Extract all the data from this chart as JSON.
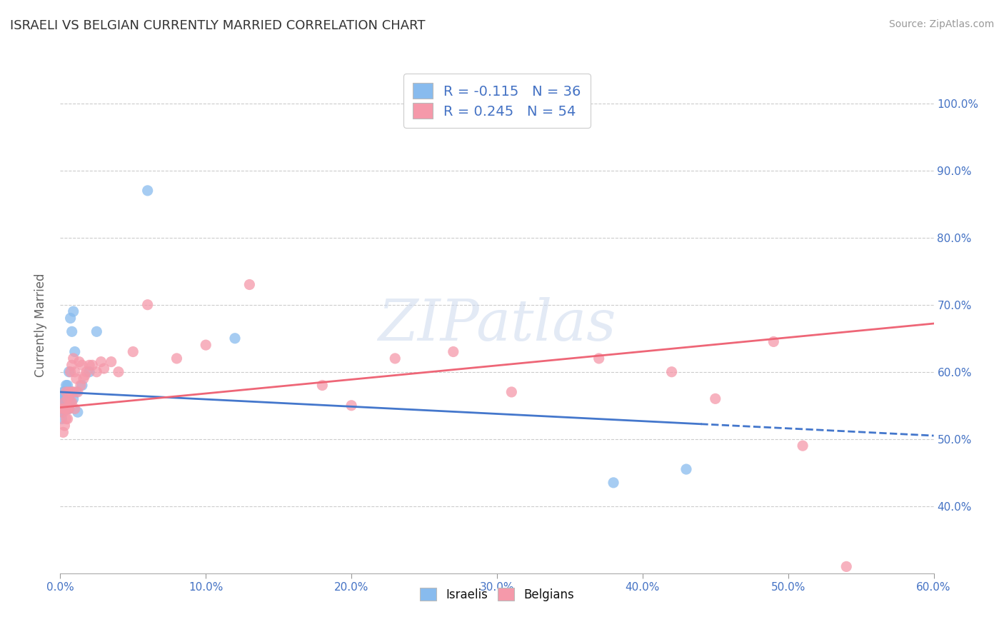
{
  "title": "ISRAELI VS BELGIAN CURRENTLY MARRIED CORRELATION CHART",
  "source": "Source: ZipAtlas.com",
  "ylabel": "Currently Married",
  "xmin": 0.0,
  "xmax": 0.6,
  "ymin": 0.3,
  "ymax": 1.04,
  "yticks": [
    0.4,
    0.5,
    0.6,
    0.7,
    0.8,
    0.9,
    1.0
  ],
  "ytick_labels": [
    "40.0%",
    "50.0%",
    "60.0%",
    "70.0%",
    "80.0%",
    "90.0%",
    "100.0%"
  ],
  "color_israeli": "#88bbee",
  "color_belgian": "#f599aa",
  "color_trend_israeli": "#4477cc",
  "color_trend_belgian": "#ee6677",
  "watermark": "ZIPatlas",
  "israelis_x": [
    0.001,
    0.001,
    0.002,
    0.002,
    0.002,
    0.002,
    0.003,
    0.003,
    0.003,
    0.003,
    0.004,
    0.004,
    0.004,
    0.004,
    0.005,
    0.005,
    0.005,
    0.006,
    0.006,
    0.006,
    0.007,
    0.007,
    0.008,
    0.008,
    0.009,
    0.009,
    0.01,
    0.011,
    0.012,
    0.015,
    0.02,
    0.025,
    0.06,
    0.12,
    0.38,
    0.43
  ],
  "israelis_y": [
    0.53,
    0.545,
    0.54,
    0.555,
    0.56,
    0.57,
    0.545,
    0.555,
    0.56,
    0.57,
    0.545,
    0.555,
    0.56,
    0.58,
    0.545,
    0.555,
    0.58,
    0.545,
    0.56,
    0.6,
    0.555,
    0.68,
    0.57,
    0.66,
    0.56,
    0.69,
    0.63,
    0.57,
    0.54,
    0.58,
    0.6,
    0.66,
    0.87,
    0.65,
    0.435,
    0.455
  ],
  "belgians_x": [
    0.001,
    0.002,
    0.002,
    0.003,
    0.003,
    0.003,
    0.004,
    0.004,
    0.004,
    0.005,
    0.005,
    0.005,
    0.006,
    0.006,
    0.007,
    0.007,
    0.008,
    0.008,
    0.008,
    0.009,
    0.009,
    0.01,
    0.01,
    0.011,
    0.012,
    0.013,
    0.014,
    0.015,
    0.016,
    0.017,
    0.018,
    0.02,
    0.022,
    0.025,
    0.028,
    0.03,
    0.035,
    0.04,
    0.05,
    0.06,
    0.08,
    0.1,
    0.13,
    0.18,
    0.2,
    0.23,
    0.27,
    0.31,
    0.37,
    0.42,
    0.45,
    0.49,
    0.51,
    0.54
  ],
  "belgians_y": [
    0.54,
    0.51,
    0.545,
    0.52,
    0.545,
    0.555,
    0.53,
    0.545,
    0.57,
    0.53,
    0.545,
    0.56,
    0.545,
    0.57,
    0.555,
    0.6,
    0.555,
    0.57,
    0.61,
    0.57,
    0.62,
    0.545,
    0.6,
    0.59,
    0.57,
    0.615,
    0.58,
    0.61,
    0.59,
    0.595,
    0.6,
    0.61,
    0.61,
    0.6,
    0.615,
    0.605,
    0.615,
    0.6,
    0.63,
    0.7,
    0.62,
    0.64,
    0.73,
    0.58,
    0.55,
    0.62,
    0.63,
    0.57,
    0.62,
    0.6,
    0.56,
    0.645,
    0.49,
    0.31
  ],
  "trend_isr_x0": 0.0,
  "trend_isr_y0": 0.57,
  "trend_isr_x1": 0.6,
  "trend_isr_y1": 0.505,
  "trend_bel_x0": 0.0,
  "trend_bel_y0": 0.547,
  "trend_bel_x1": 0.6,
  "trend_bel_y1": 0.672,
  "trend_isr_solid_end": 0.44,
  "trend_isr_dash_start": 0.44
}
